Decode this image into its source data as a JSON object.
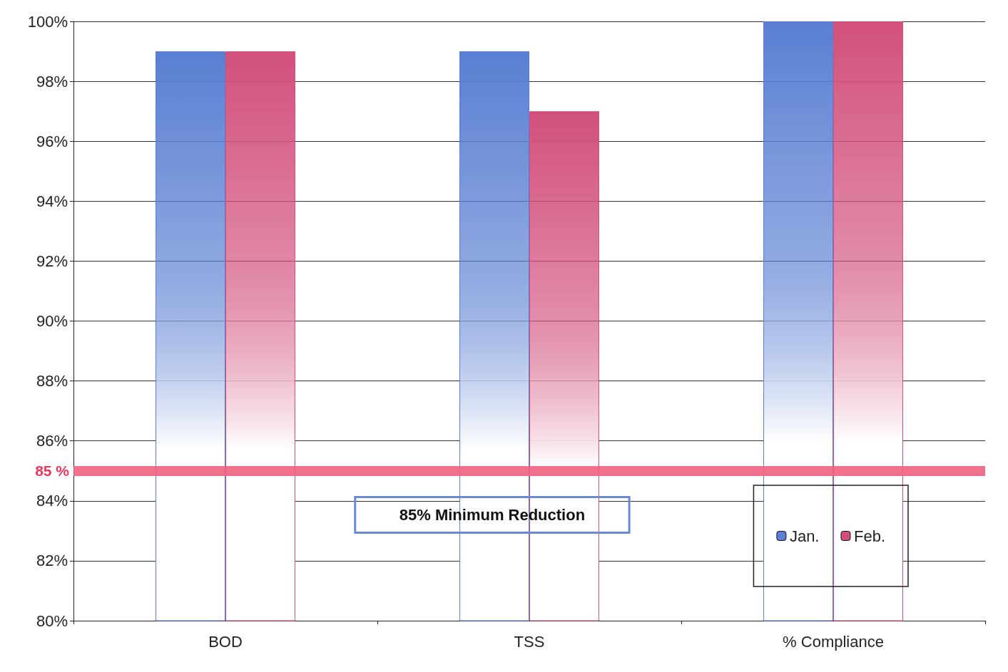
{
  "chart_data": {
    "type": "bar",
    "categories": [
      "BOD",
      "TSS",
      "% Compliance"
    ],
    "series": [
      {
        "name": "Jan.",
        "color": "#5a7fd2",
        "values": [
          99,
          99,
          100
        ]
      },
      {
        "name": "Feb.",
        "color": "#d2507e",
        "values": [
          99,
          97,
          100
        ]
      }
    ],
    "ylim": [
      80,
      100
    ],
    "yticks": [
      {
        "value": 80,
        "label": "80%"
      },
      {
        "value": 82,
        "label": "82%"
      },
      {
        "value": 84,
        "label": "84%"
      },
      {
        "value": 86,
        "label": "86%"
      },
      {
        "value": 88,
        "label": "88%"
      },
      {
        "value": 90,
        "label": "90%"
      },
      {
        "value": 92,
        "label": "92%"
      },
      {
        "value": 94,
        "label": "94%"
      },
      {
        "value": 96,
        "label": "96%"
      },
      {
        "value": 98,
        "label": "98%"
      },
      {
        "value": 100,
        "label": "100%"
      }
    ],
    "ref_lines": [
      {
        "axis": "y",
        "value": 85,
        "label": "85 %",
        "color": "#f06080"
      }
    ],
    "annotations": [
      "85% Minimum Reduction"
    ],
    "grid": "y",
    "legend": "bottom right"
  }
}
